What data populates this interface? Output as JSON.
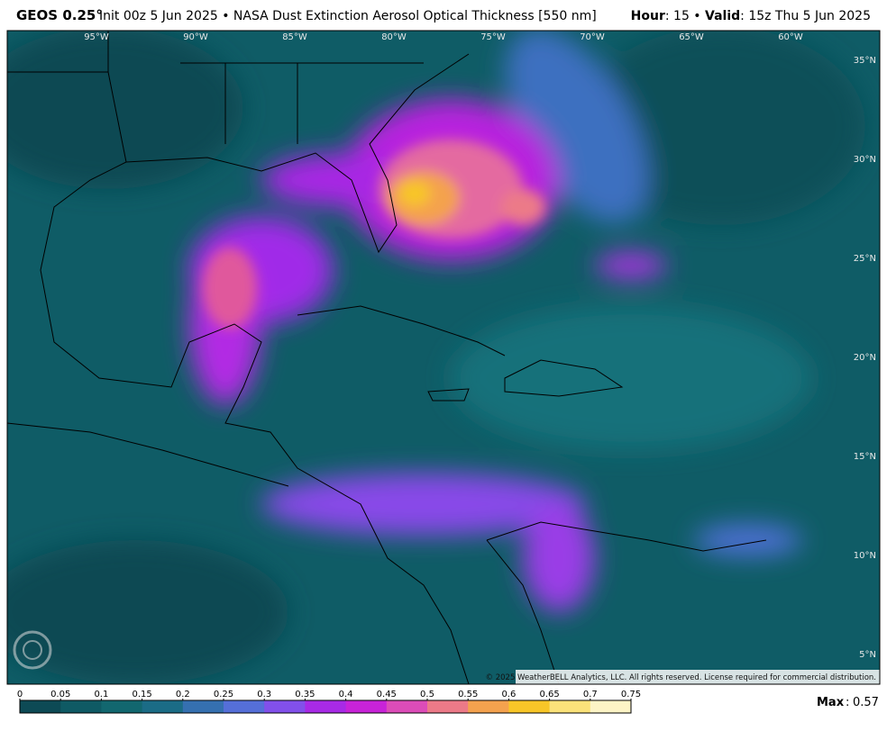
{
  "header": {
    "model": "GEOS 0.25°",
    "description": "Init 00z 5 Jun 2025 • NASA Dust Extinction Aerosol Optical Thickness [550 nm]",
    "hour_label": "Hour",
    "hour_value": ": 15 • ",
    "valid_label": "Valid",
    "valid_value": ": 15z Thu 5 Jun 2025"
  },
  "map": {
    "longitude_labels": [
      "95°W",
      "90°W",
      "85°W",
      "80°W",
      "75°W",
      "70°W",
      "65°W",
      "60°W"
    ],
    "latitude_labels": [
      "35°N",
      "30°N",
      "25°N",
      "20°N",
      "15°N",
      "10°N",
      "5°N"
    ],
    "copyright": "© 2025 WeatherBELL Analytics, LLC. All rights reserved. License required for commercial distribution."
  },
  "colorbar": {
    "lim": [
      0,
      0.75
    ],
    "ticks": [
      0,
      0.05,
      0.1,
      0.15,
      0.2,
      0.25,
      0.3,
      0.35,
      0.4,
      0.45,
      0.5,
      0.55,
      0.6,
      0.65,
      0.7,
      0.75
    ],
    "colors": [
      "#0d4a55",
      "#0f5a64",
      "#12676f",
      "#1b6c86",
      "#3570b0",
      "#556fd8",
      "#8250ea",
      "#a82ae6",
      "#c823d8",
      "#dc4cb8",
      "#ec7a88",
      "#f4a24e",
      "#f8c628",
      "#fbe27a",
      "#fdf4c6"
    ],
    "max_label": "Max",
    "max_value": 0.57
  }
}
